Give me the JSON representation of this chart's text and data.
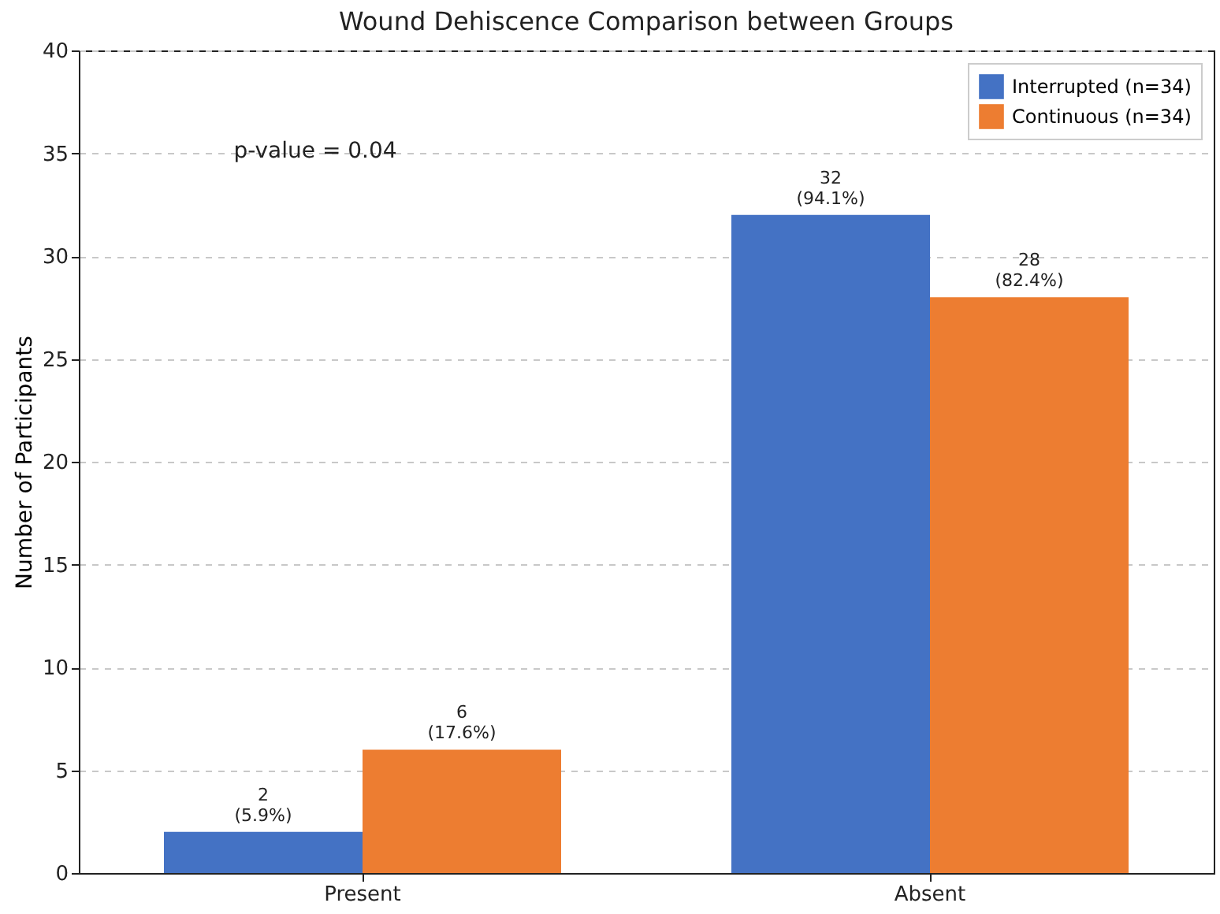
{
  "chart_data": {
    "type": "bar",
    "title": "Wound Dehiscence Comparison between Groups",
    "ylabel": "Number of Participants",
    "categories": [
      "Present",
      "Absent"
    ],
    "series": [
      {
        "name": "Interrupted (n=34)",
        "color": "#4472c4",
        "values": [
          2,
          32
        ],
        "value_labels": [
          "2\n(5.9%)",
          "32\n(94.1%)"
        ]
      },
      {
        "name": "Continuous (n=34)",
        "color": "#ed7d31",
        "values": [
          6,
          28
        ],
        "value_labels": [
          "6\n(17.6%)",
          "28\n(82.4%)"
        ]
      }
    ],
    "ylim": [
      0,
      40
    ],
    "yticks": [
      0,
      5,
      10,
      15,
      20,
      25,
      30,
      35,
      40
    ],
    "grid": "y",
    "legend": "top right",
    "annotations": [
      "p-value = 0.04"
    ]
  }
}
